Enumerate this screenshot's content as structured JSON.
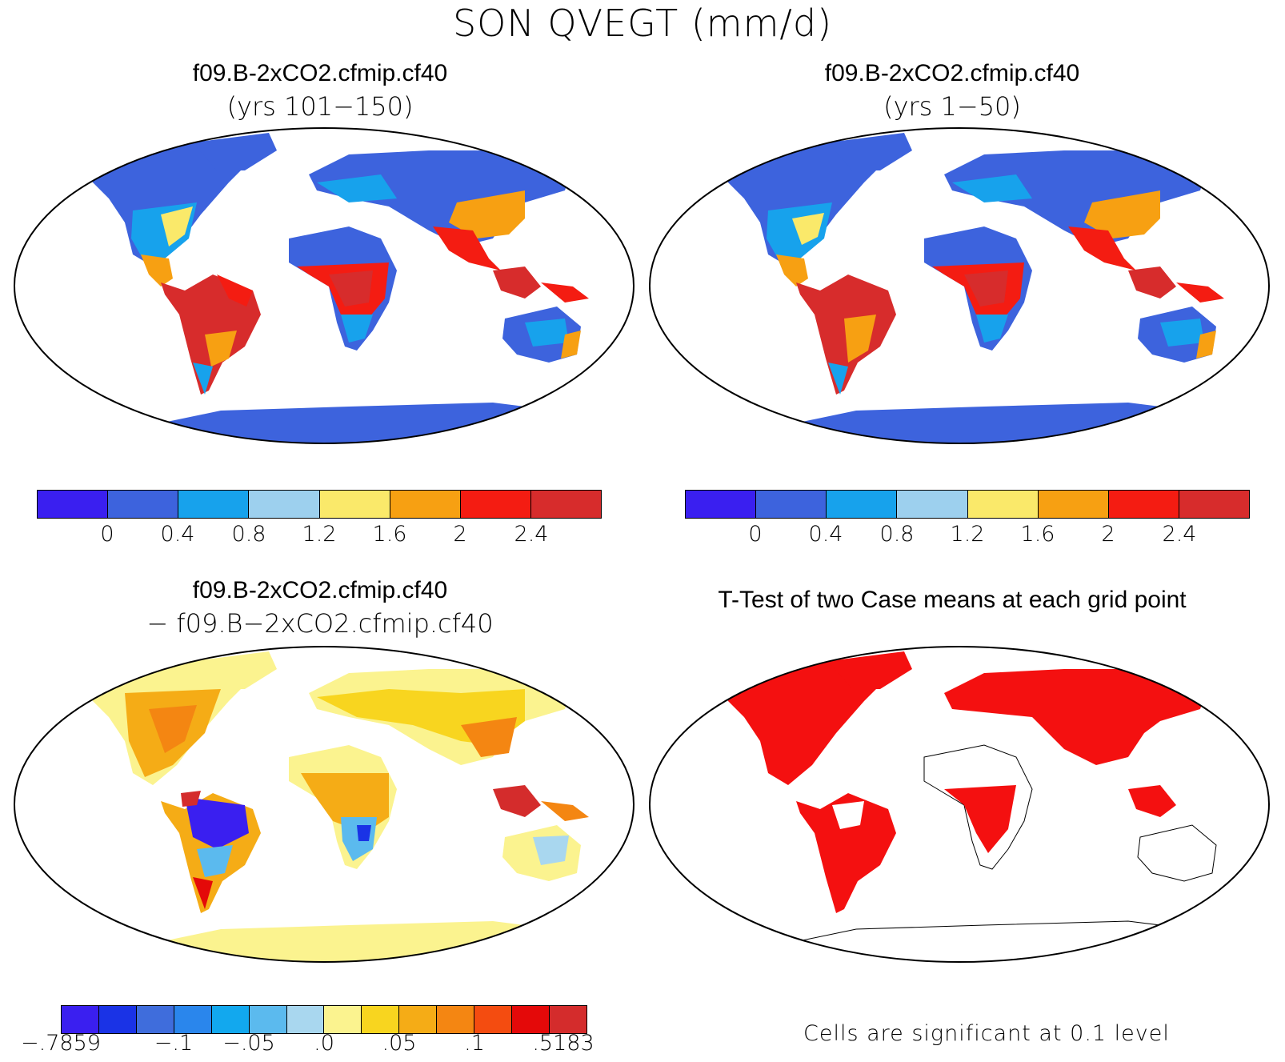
{
  "title": "SON QVEGT (mm/d)",
  "panels": [
    {
      "id": "p1",
      "title": "f09.B-2xCO2.cfmip.cf40",
      "subtitle": "(yrs 101−150)"
    },
    {
      "id": "p2",
      "title": "f09.B-2xCO2.cfmip.cf40",
      "subtitle": "(yrs 1−50)"
    },
    {
      "id": "p3",
      "title": "f09.B-2xCO2.cfmip.cf40",
      "subtitle": "− f09.B−2xCO2.cfmip.cf40"
    },
    {
      "id": "p4",
      "title": "T-Test of two Case means at each grid point",
      "subtitle": ""
    }
  ],
  "colorbars": {
    "abs": {
      "colors": [
        "#3a1ff0",
        "#3d63dd",
        "#17a2ec",
        "#9dd0ee",
        "#fae96a",
        "#f7a012",
        "#f41c12",
        "#d72c2c"
      ],
      "labels": [
        "0",
        "0.4",
        "0.8",
        "1.2",
        "1.6",
        "2",
        "2.4"
      ]
    },
    "diff": {
      "colors": [
        "#3a1ff0",
        "#1a33e6",
        "#3f6ddc",
        "#2a86ec",
        "#12a8ee",
        "#5bbaee",
        "#a9d7ef",
        "#fbf38f",
        "#f8d51f",
        "#f5ac16",
        "#f48612",
        "#f44c10",
        "#e40909",
        "#d42c2c"
      ],
      "labels": [
        "−.7859",
        "−.1",
        "−.05",
        ".0",
        ".05",
        ".1",
        ".5183"
      ]
    }
  },
  "significance_note": "Cells are significant at 0.1 level",
  "map_colors": {
    "cold": "#3d63dd",
    "warm": "#d42c2c",
    "sig": "#f41010",
    "diff_base": "#fbf38f"
  }
}
